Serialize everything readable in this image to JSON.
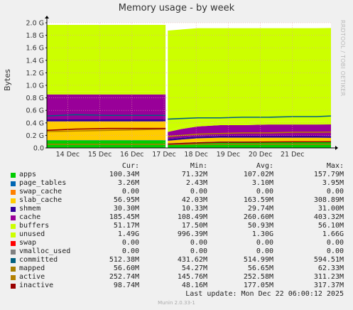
{
  "title": "Memory usage - by week",
  "watermark": "RRDTOOL / TOBI OETIKER",
  "footer": {
    "last_update": "Last update:  Mon Dec 22 06:00:12 2025",
    "version": "Munin 2.0.33-1"
  },
  "legend_headers": {
    "cur": "Cur:",
    "min": "Min:",
    "avg": "Avg:",
    "max": "Max:"
  },
  "legend": [
    {
      "name": "apps",
      "color": "#00cc00",
      "cur": "100.34M",
      "min": "71.32M",
      "avg": "107.02M",
      "max": "157.79M"
    },
    {
      "name": "page_tables",
      "color": "#0066b3",
      "cur": "3.26M",
      "min": "2.43M",
      "avg": "3.10M",
      "max": "3.95M"
    },
    {
      "name": "swap_cache",
      "color": "#ff8000",
      "cur": "0.00",
      "min": "0.00",
      "avg": "0.00",
      "max": "0.00"
    },
    {
      "name": "slab_cache",
      "color": "#ffcc00",
      "cur": "56.95M",
      "min": "42.03M",
      "avg": "163.59M",
      "max": "308.89M"
    },
    {
      "name": "shmem",
      "color": "#330099",
      "cur": "30.30M",
      "min": "10.33M",
      "avg": "29.74M",
      "max": "31.00M"
    },
    {
      "name": "cache",
      "color": "#990099",
      "cur": "185.45M",
      "min": "108.49M",
      "avg": "260.60M",
      "max": "403.32M"
    },
    {
      "name": "buffers",
      "color": "#ccff00",
      "cur": "51.17M",
      "min": "17.50M",
      "avg": "50.93M",
      "max": "56.10M"
    },
    {
      "name": "unused",
      "color": "#ccff00",
      "cur": "1.49G",
      "min": "996.39M",
      "avg": "1.30G",
      "max": "1.66G"
    },
    {
      "name": "swap",
      "color": "#ff0000",
      "cur": "0.00",
      "min": "0.00",
      "avg": "0.00",
      "max": "0.00"
    },
    {
      "name": "vmalloc_used",
      "color": "#808080",
      "cur": "0.00",
      "min": "0.00",
      "avg": "0.00",
      "max": "0.00"
    },
    {
      "name": "committed",
      "color": "#006080",
      "cur": "512.38M",
      "min": "431.62M",
      "avg": "514.99M",
      "max": "594.51M"
    },
    {
      "name": "mapped",
      "color": "#a68000",
      "cur": "56.60M",
      "min": "54.27M",
      "avg": "56.65M",
      "max": "62.33M"
    },
    {
      "name": "active",
      "color": "#b38000",
      "cur": "252.74M",
      "min": "145.76M",
      "avg": "252.58M",
      "max": "311.23M"
    },
    {
      "name": "inactive",
      "color": "#990000",
      "cur": "98.74M",
      "min": "48.16M",
      "avg": "177.05M",
      "max": "317.37M"
    }
  ],
  "chart_data": {
    "type": "area",
    "title": "Memory usage - by week",
    "ylabel": "Bytes",
    "ylim": [
      0,
      2.0
    ],
    "y_ticks": [
      "0.0",
      "0.2 G",
      "0.4 G",
      "0.6 G",
      "0.8 G",
      "1.0 G",
      "1.2 G",
      "1.4 G",
      "1.6 G",
      "1.8 G",
      "2.0 G"
    ],
    "y_tick_values": [
      0,
      0.2,
      0.4,
      0.6,
      0.8,
      1.0,
      1.2,
      1.4,
      1.6,
      1.8,
      2.0
    ],
    "x_ticks": [
      "14 Dec",
      "15 Dec",
      "16 Dec",
      "17 Dec",
      "18 Dec",
      "19 Dec",
      "20 Dec",
      "21 Dec"
    ],
    "x_tick_values": [
      13.75,
      14.75,
      15.75,
      16.75,
      17.75,
      18.75,
      19.75,
      20.75
    ],
    "x_range": [
      13.1,
      21.95
    ],
    "gap": [
      16.8,
      16.85
    ],
    "stack_order": [
      "apps",
      "page_tables",
      "slab_cache",
      "shmem",
      "cache",
      "buffers",
      "unused"
    ],
    "segments": [
      {
        "x": [
          13.1,
          14.0,
          15.0,
          16.0,
          16.8
        ],
        "apps": [
          0.12,
          0.12,
          0.12,
          0.12,
          0.12
        ],
        "page_tables": [
          0.004,
          0.004,
          0.004,
          0.004,
          0.004
        ],
        "slab_cache": [
          0.3,
          0.3,
          0.3,
          0.3,
          0.3
        ],
        "shmem": [
          0.03,
          0.03,
          0.03,
          0.03,
          0.03
        ],
        "cache": [
          0.4,
          0.4,
          0.4,
          0.4,
          0.4
        ],
        "buffers": [
          0.052,
          0.052,
          0.052,
          0.052,
          0.052
        ],
        "unused": [
          1.06,
          1.06,
          1.06,
          1.06,
          1.06
        ],
        "committed": [
          0.51,
          0.53,
          0.52,
          0.52,
          0.52
        ],
        "active": [
          0.26,
          0.27,
          0.28,
          0.29,
          0.3
        ],
        "inactive": [
          0.28,
          0.3,
          0.31,
          0.31,
          0.31
        ],
        "mapped": [
          0.057,
          0.057,
          0.057,
          0.057,
          0.057
        ]
      },
      {
        "x": [
          16.85,
          17.3,
          17.8,
          18.5,
          19.2,
          20.0,
          20.8,
          21.5,
          21.95
        ],
        "apps": [
          0.07,
          0.08,
          0.09,
          0.1,
          0.1,
          0.1,
          0.1,
          0.1,
          0.1
        ],
        "page_tables": [
          0.003,
          0.003,
          0.003,
          0.003,
          0.003,
          0.003,
          0.003,
          0.003,
          0.003
        ],
        "slab_cache": [
          0.04,
          0.05,
          0.06,
          0.06,
          0.06,
          0.06,
          0.06,
          0.06,
          0.057
        ],
        "shmem": [
          0.03,
          0.03,
          0.03,
          0.03,
          0.03,
          0.03,
          0.03,
          0.03,
          0.03
        ],
        "cache": [
          0.11,
          0.14,
          0.16,
          0.17,
          0.17,
          0.18,
          0.18,
          0.18,
          0.185
        ],
        "buffers": [
          0.02,
          0.04,
          0.05,
          0.05,
          0.05,
          0.05,
          0.05,
          0.05,
          0.051
        ],
        "unused": [
          1.6,
          1.55,
          1.52,
          1.5,
          1.5,
          1.49,
          1.49,
          1.49,
          1.49
        ],
        "committed": [
          0.46,
          0.47,
          0.48,
          0.48,
          0.49,
          0.49,
          0.5,
          0.5,
          0.51
        ],
        "active": [
          0.18,
          0.2,
          0.22,
          0.23,
          0.24,
          0.24,
          0.25,
          0.25,
          0.253
        ],
        "inactive": [
          0.06,
          0.07,
          0.08,
          0.09,
          0.09,
          0.095,
          0.097,
          0.098,
          0.099
        ],
        "mapped": [
          0.055,
          0.055,
          0.056,
          0.056,
          0.056,
          0.057,
          0.057,
          0.057,
          0.057
        ]
      }
    ]
  }
}
